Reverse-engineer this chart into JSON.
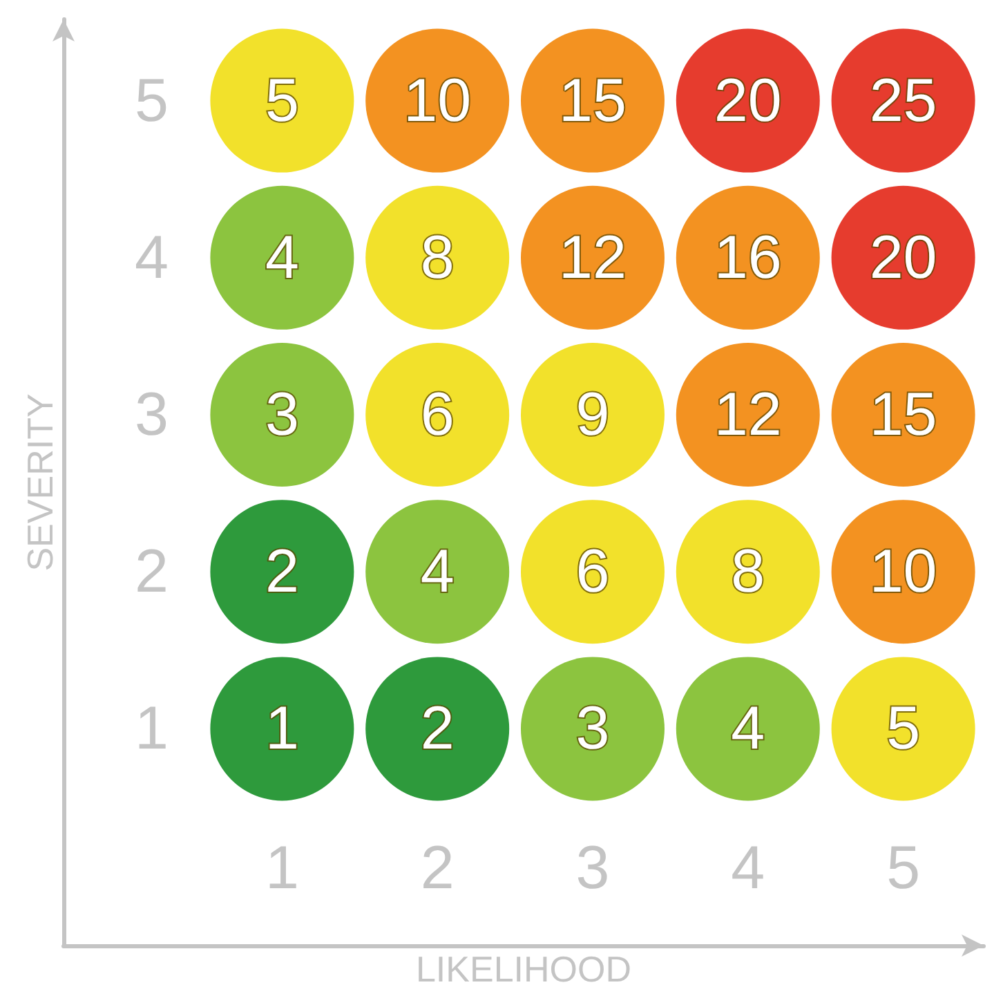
{
  "chart_data": {
    "type": "heatmap",
    "xlabel": "LIKELIHOOD",
    "ylabel": "SEVERITY",
    "data_labels": true,
    "categories": [
      "1",
      "2",
      "3",
      "4",
      "5"
    ],
    "y_categories": [
      "5",
      "4",
      "3",
      "2",
      "1"
    ],
    "cells": [
      [
        5,
        10,
        15,
        20,
        25
      ],
      [
        4,
        8,
        12,
        16,
        20
      ],
      [
        3,
        6,
        9,
        12,
        15
      ],
      [
        2,
        4,
        6,
        8,
        10
      ],
      [
        1,
        2,
        3,
        4,
        5
      ]
    ],
    "colors": [
      [
        "#f2e12b",
        "#f39221",
        "#f39221",
        "#e63c2e",
        "#e63c2e"
      ],
      [
        "#8cc43f",
        "#f2e12b",
        "#f39221",
        "#f39221",
        "#e63c2e"
      ],
      [
        "#8cc43f",
        "#f2e12b",
        "#f2e12b",
        "#f39221",
        "#f39221"
      ],
      [
        "#2e9a3c",
        "#8cc43f",
        "#f2e12b",
        "#f2e12b",
        "#f39221"
      ],
      [
        "#2e9a3c",
        "#2e9a3c",
        "#8cc43f",
        "#8cc43f",
        "#f2e12b"
      ]
    ]
  }
}
